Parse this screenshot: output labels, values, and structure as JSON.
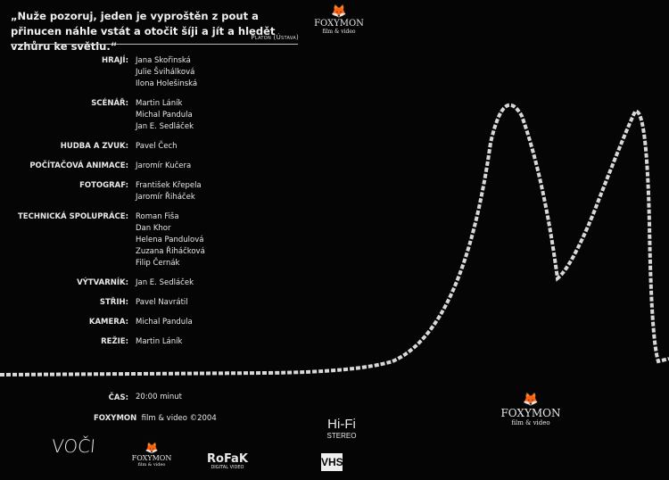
{
  "quote": {
    "text": "„Nuže pozoruj, jeden je vyproštěn z pout a přinucen náhle vstát a otočit šíji a jít a hledět vzhůru ke světlu.“",
    "author": "Platon (Ústava)"
  },
  "credits": [
    {
      "label": "HRAJÍ:",
      "names": [
        "Jana Skořinská",
        "Julie Švihálková",
        "Ilona Holešinská"
      ]
    },
    {
      "label": "SCÉNÁŘ:",
      "names": [
        "Martin Láník",
        "Michal Pandula",
        "Jan E. Sedláček"
      ]
    },
    {
      "label": "HUDBA A ZVUK:",
      "names": [
        "Pavel Čech"
      ]
    },
    {
      "label": "POČÍTAČOVÁ ANIMACE:",
      "names": [
        "Jaromír Kučera"
      ]
    },
    {
      "label": "FOTOGRAF:",
      "names": [
        "František Křepela",
        "Jaromír Řiháček"
      ]
    },
    {
      "label": "TECHNICKÁ SPOLUPRÁCE:",
      "names": [
        "Roman Fiša",
        "Dan Khor",
        "Helena Pandulová",
        "Zuzana Řiháčková",
        "Filip Černák"
      ]
    },
    {
      "label": "VÝTVARNÍK:",
      "names": [
        "Jan E. Sedláček"
      ]
    },
    {
      "label": "STŘIH:",
      "names": [
        "Pavel Navrátil"
      ]
    },
    {
      "label": "KAMERA:",
      "names": [
        "Michal Pandula"
      ]
    },
    {
      "label": "REŽIE:",
      "names": [
        "Martin Láník"
      ]
    }
  ],
  "time": {
    "label": "ČAS:",
    "value": "20:00 minut"
  },
  "copyright": {
    "brand": "FOXYMON",
    "text": "film & video ©2004"
  },
  "logos": {
    "voci": "VOČI",
    "foxymon": "FOXYMON",
    "foxymon_sub": "film & video",
    "rofak": "RoFaK",
    "rofak_sub": "DIGITAL VIDEO",
    "hifi": "Hi-Fi",
    "stereo": "STEREO",
    "vhs": "VHS"
  },
  "colors": {
    "background": "#050505",
    "text": "#e8e8e8",
    "rope": "#d8d8d8"
  }
}
